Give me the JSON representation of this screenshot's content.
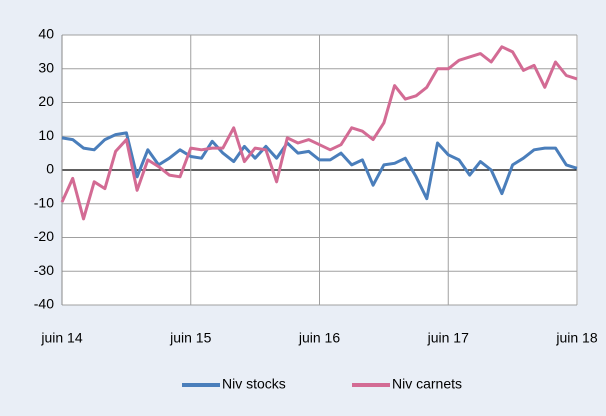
{
  "chart_data": {
    "type": "line",
    "categories": [
      "juin 14",
      null,
      null,
      null,
      null,
      null,
      null,
      null,
      null,
      null,
      null,
      null,
      "juin 15",
      null,
      null,
      null,
      null,
      null,
      null,
      null,
      null,
      null,
      null,
      null,
      "juin 16",
      null,
      null,
      null,
      null,
      null,
      null,
      null,
      null,
      null,
      null,
      null,
      "juin 17",
      null,
      null,
      null,
      null,
      null,
      null,
      null,
      null,
      null,
      null,
      null,
      "juin 18"
    ],
    "series": [
      {
        "name": "Niv stocks",
        "color": "#4a7ebb",
        "values": [
          9.5,
          9,
          6.5,
          6,
          9,
          10.5,
          11,
          -2,
          6,
          1.5,
          3.5,
          6,
          4,
          3.5,
          8.5,
          5,
          2.5,
          7,
          3.5,
          7,
          3.5,
          8,
          5,
          5.5,
          3,
          3,
          5,
          1.5,
          3,
          -4.5,
          1.5,
          2,
          3.5,
          -2,
          -8.5,
          8,
          4.5,
          3,
          -1.5,
          2.5,
          0,
          -7,
          1.5,
          3.5,
          6,
          6.5,
          6.5,
          1.5,
          0.5
        ]
      },
      {
        "name": "Niv carnets",
        "color": "#d36b94",
        "values": [
          -9.5,
          -2.5,
          -14.5,
          -3.5,
          -5.5,
          5.5,
          9,
          -6,
          3,
          1,
          -1.5,
          -2,
          6.5,
          6,
          6.5,
          6.5,
          12.5,
          2.5,
          6.5,
          6,
          -3.5,
          9.5,
          8,
          9,
          7.5,
          6,
          7.5,
          12.5,
          11.5,
          9,
          14,
          25,
          21,
          22,
          24.5,
          30,
          30,
          32.5,
          33.5,
          34.5,
          32,
          36.5,
          35,
          29.5,
          31,
          24.5,
          32,
          28,
          27
        ]
      }
    ],
    "ylim": [
      -40,
      40
    ],
    "yticks": [
      -40,
      -30,
      -20,
      -10,
      0,
      10,
      20,
      30,
      40
    ],
    "grid": true,
    "legend": "bottom"
  }
}
